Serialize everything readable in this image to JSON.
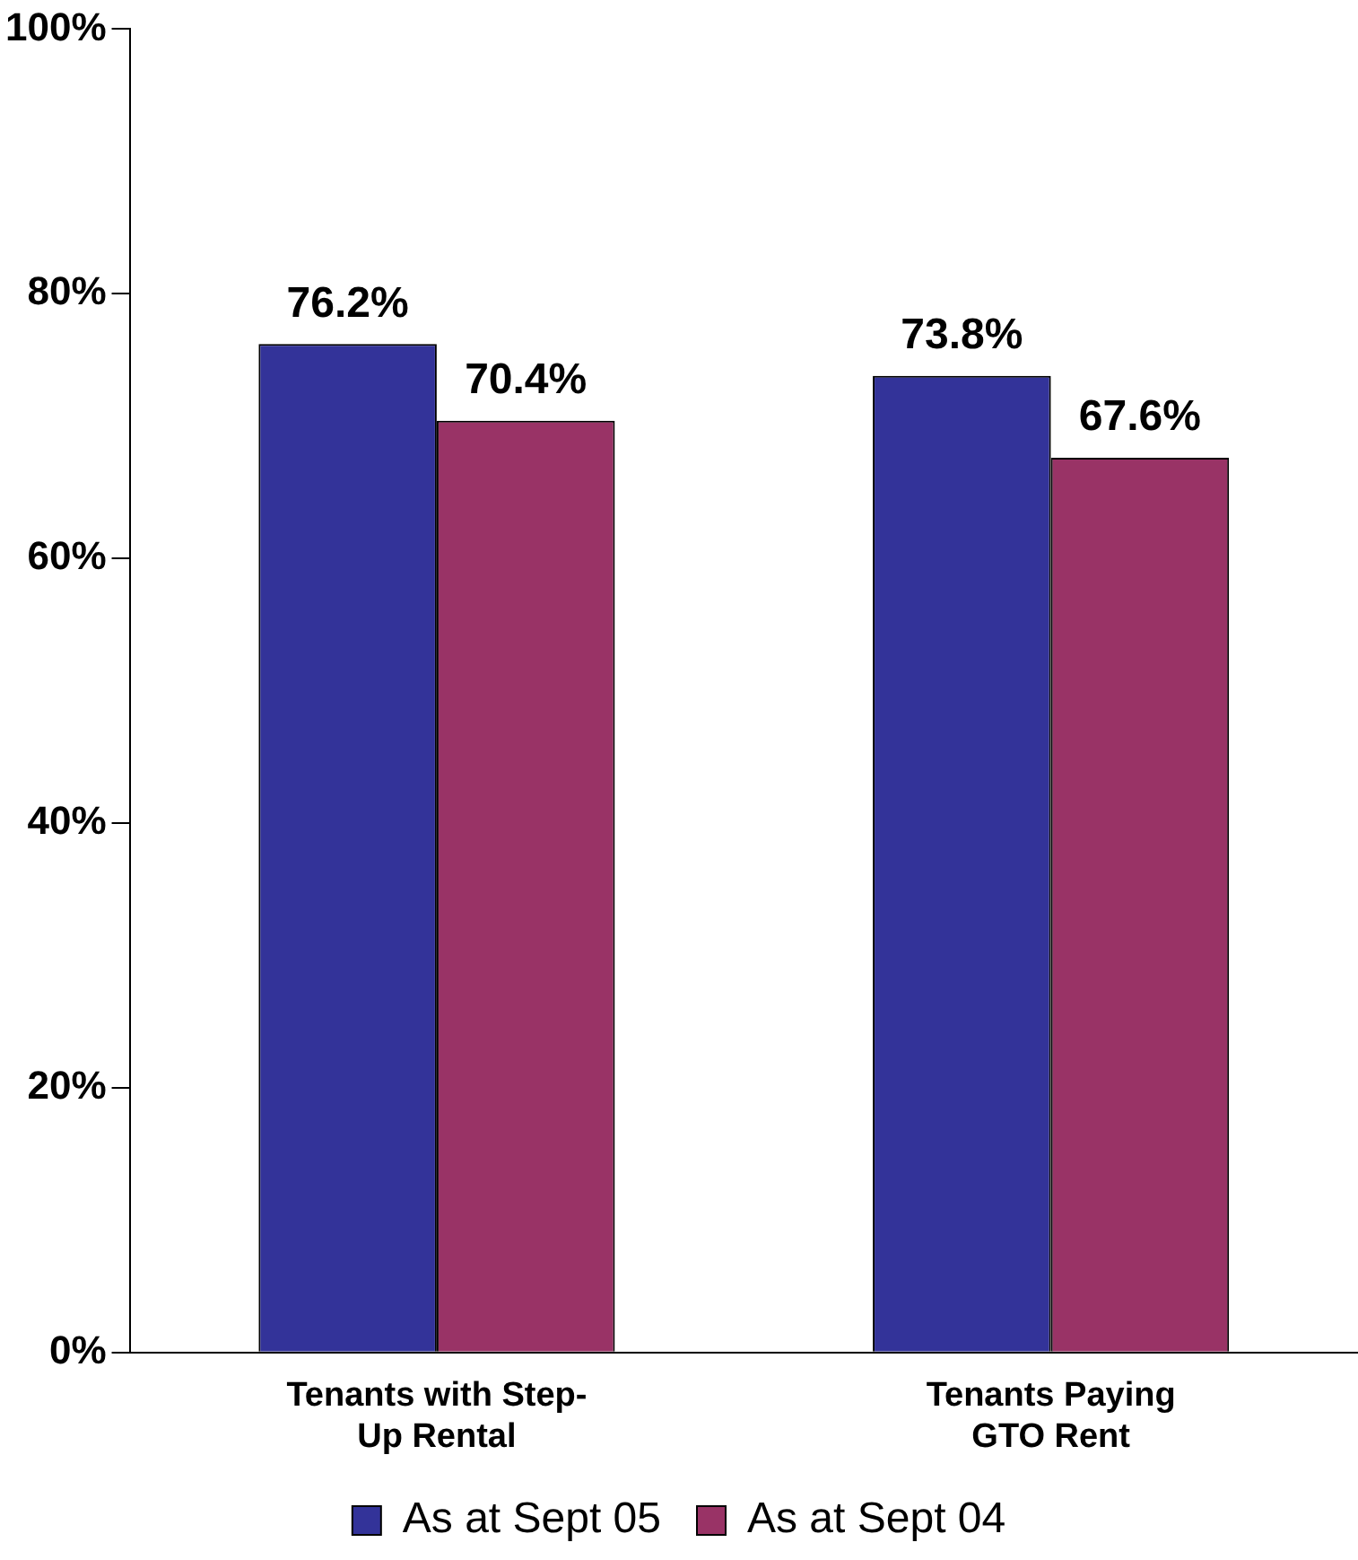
{
  "chart_data": {
    "type": "bar",
    "categories": [
      "Tenants with Step-Up Rental",
      "Tenants Paying GTO Rent"
    ],
    "series": [
      {
        "name": "As at Sept 05",
        "color": "#333399",
        "values": [
          76.2,
          73.8
        ],
        "value_labels": [
          "76.2%",
          "73.8%"
        ]
      },
      {
        "name": "As at Sept 04",
        "color": "#993366",
        "values": [
          70.4,
          67.6
        ],
        "value_labels": [
          "70.4%",
          "67.6%"
        ]
      }
    ],
    "ylim": [
      0,
      100
    ],
    "yticks": [
      {
        "value": 0,
        "label": "0%"
      },
      {
        "value": 20,
        "label": "20%"
      },
      {
        "value": 40,
        "label": "40%"
      },
      {
        "value": 60,
        "label": "60%"
      },
      {
        "value": 80,
        "label": "80%"
      },
      {
        "value": 100,
        "label": "100%"
      }
    ],
    "grid": false,
    "legend": "bottom"
  }
}
